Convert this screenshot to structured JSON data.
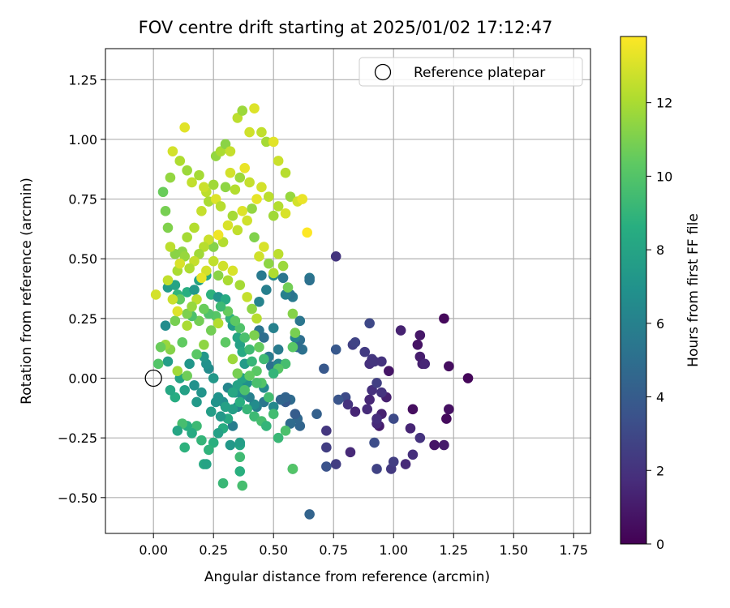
{
  "chart_data": {
    "type": "scatter",
    "title": "FOV centre drift starting at 2025/01/02 17:12:47",
    "xlabel": "Angular distance from reference (arcmin)",
    "ylabel": "Rotation from reference (arcmin)",
    "xlim": [
      -0.2,
      1.82
    ],
    "ylim": [
      -0.65,
      1.38
    ],
    "xticks": [
      0.0,
      0.25,
      0.5,
      0.75,
      1.0,
      1.25,
      1.5,
      1.75
    ],
    "xtick_labels": [
      "0.00",
      "0.25",
      "0.50",
      "0.75",
      "1.00",
      "1.25",
      "1.50",
      "1.75"
    ],
    "yticks": [
      -0.5,
      -0.25,
      0.0,
      0.25,
      0.5,
      0.75,
      1.0,
      1.25
    ],
    "ytick_labels": [
      "−0.50",
      "−0.25",
      "0.00",
      "0.25",
      "0.50",
      "0.75",
      "1.00",
      "1.25"
    ],
    "grid": true,
    "legend": {
      "position": "top-right",
      "entries": [
        "Reference platepar"
      ]
    },
    "reference_point": {
      "x": 0.0,
      "y": 0.0,
      "label": "Reference platepar"
    },
    "colorbar": {
      "label": "Hours from first FF file",
      "colormap": "viridis",
      "range": [
        0,
        13.8
      ],
      "ticks": [
        0,
        2,
        4,
        6,
        8,
        10,
        12
      ],
      "tick_labels": [
        "0",
        "2",
        "4",
        "6",
        "8",
        "10",
        "12"
      ]
    },
    "point_columns": [
      "x",
      "y",
      "hours"
    ],
    "points": [
      [
        1.31,
        0.0,
        0.2
      ],
      [
        1.21,
        0.25,
        0.3
      ],
      [
        1.23,
        0.05,
        0.5
      ],
      [
        1.22,
        -0.17,
        0.4
      ],
      [
        1.23,
        -0.13,
        0.6
      ],
      [
        1.17,
        -0.28,
        0.8
      ],
      [
        1.21,
        -0.28,
        1.0
      ],
      [
        1.08,
        -0.13,
        0.5
      ],
      [
        1.1,
        0.14,
        0.7
      ],
      [
        1.11,
        0.18,
        0.9
      ],
      [
        1.11,
        0.09,
        1.1
      ],
      [
        1.12,
        0.06,
        1.2
      ],
      [
        1.13,
        0.06,
        1.5
      ],
      [
        1.03,
        0.2,
        1.3
      ],
      [
        1.05,
        -0.36,
        1.6
      ],
      [
        1.07,
        -0.21,
        1.4
      ],
      [
        1.08,
        -0.32,
        1.8
      ],
      [
        1.11,
        -0.25,
        2.0
      ],
      [
        0.98,
        0.03,
        0.8
      ],
      [
        0.94,
        -0.2,
        1.0
      ],
      [
        0.93,
        -0.19,
        1.6
      ],
      [
        0.97,
        -0.08,
        1.2
      ],
      [
        0.99,
        -0.38,
        2.3
      ],
      [
        1.0,
        -0.35,
        2.5
      ],
      [
        0.83,
        0.14,
        2.6
      ],
      [
        0.84,
        0.15,
        2.8
      ],
      [
        0.88,
        0.11,
        2.4
      ],
      [
        0.91,
        0.08,
        2.2
      ],
      [
        0.9,
        0.06,
        1.9
      ],
      [
        0.92,
        0.07,
        2.1
      ],
      [
        0.95,
        0.07,
        2.0
      ],
      [
        0.9,
        0.23,
        3.0
      ],
      [
        0.92,
        -0.27,
        3.2
      ],
      [
        0.93,
        -0.38,
        2.7
      ],
      [
        0.89,
        -0.13,
        1.7
      ],
      [
        0.9,
        -0.09,
        1.5
      ],
      [
        0.91,
        -0.05,
        1.9
      ],
      [
        0.93,
        -0.02,
        2.6
      ],
      [
        0.95,
        -0.06,
        2.0
      ],
      [
        0.95,
        -0.15,
        1.3
      ],
      [
        0.93,
        -0.17,
        1.8
      ],
      [
        1.0,
        -0.17,
        3.1
      ],
      [
        0.82,
        -0.31,
        1.6
      ],
      [
        0.84,
        -0.14,
        1.4
      ],
      [
        0.8,
        -0.08,
        3.1
      ],
      [
        0.81,
        -0.11,
        2.0
      ],
      [
        0.76,
        -0.36,
        2.5
      ],
      [
        0.72,
        -0.37,
        3.5
      ],
      [
        0.72,
        -0.29,
        2.5
      ],
      [
        0.72,
        -0.22,
        2.2
      ],
      [
        0.71,
        0.04,
        3.8
      ],
      [
        0.76,
        0.12,
        3.8
      ],
      [
        0.77,
        -0.09,
        3.6
      ],
      [
        0.76,
        0.51,
        2.1
      ],
      [
        0.68,
        -0.15,
        4.2
      ],
      [
        0.65,
        -0.57,
        4.4
      ],
      [
        0.61,
        -0.2,
        4.5
      ],
      [
        0.6,
        -0.17,
        4.6
      ],
      [
        0.59,
        -0.15,
        4.0
      ],
      [
        0.57,
        -0.19,
        4.8
      ],
      [
        0.58,
        -0.38,
        4.3
      ],
      [
        0.57,
        -0.09,
        4.8
      ],
      [
        0.55,
        -0.1,
        3.9
      ],
      [
        0.65,
        0.42,
        5.5
      ],
      [
        0.65,
        0.41,
        5.1
      ],
      [
        0.61,
        0.24,
        5.4
      ],
      [
        0.61,
        0.16,
        5.0
      ],
      [
        0.62,
        0.12,
        5.1
      ],
      [
        0.59,
        0.17,
        6.2
      ],
      [
        0.6,
        0.13,
        4.9
      ],
      [
        0.58,
        0.34,
        5.6
      ],
      [
        0.57,
        0.35,
        5.3
      ],
      [
        0.55,
        0.35,
        6.0
      ],
      [
        0.54,
        0.42,
        5.4
      ],
      [
        0.5,
        0.43,
        6.5
      ],
      [
        0.47,
        0.37,
        5.9
      ],
      [
        0.45,
        0.43,
        5.6
      ],
      [
        0.44,
        0.32,
        6.1
      ],
      [
        0.44,
        0.2,
        5.3
      ],
      [
        0.46,
        0.17,
        5.0
      ],
      [
        0.48,
        0.09,
        5.6
      ],
      [
        0.5,
        0.21,
        6.0
      ],
      [
        0.49,
        0.05,
        5.1
      ],
      [
        0.52,
        0.06,
        6.1
      ],
      [
        0.52,
        0.12,
        5.7
      ],
      [
        0.53,
        -0.09,
        4.6
      ],
      [
        0.55,
        -0.08,
        4.4
      ],
      [
        0.5,
        -0.12,
        6.4
      ],
      [
        0.46,
        -0.04,
        6.4
      ],
      [
        0.46,
        -0.1,
        5.4
      ],
      [
        0.43,
        -0.12,
        5.9
      ],
      [
        0.42,
        -0.11,
        6.6
      ],
      [
        0.4,
        -0.08,
        6.0
      ],
      [
        0.39,
        -0.02,
        6.9
      ],
      [
        0.37,
        -0.07,
        6.5
      ],
      [
        0.35,
        -0.12,
        6.2
      ],
      [
        0.34,
        -0.06,
        7.0
      ],
      [
        0.33,
        -0.2,
        5.8
      ],
      [
        0.31,
        -0.04,
        6.3
      ],
      [
        0.29,
        -0.1,
        6.8
      ],
      [
        0.27,
        -0.08,
        7.0
      ],
      [
        0.25,
        0.0,
        7.3
      ],
      [
        0.23,
        0.04,
        6.6
      ],
      [
        0.22,
        0.06,
        6.9
      ],
      [
        0.21,
        0.09,
        7.2
      ],
      [
        0.2,
        -0.06,
        7.1
      ],
      [
        0.18,
        -0.1,
        7.4
      ],
      [
        0.17,
        -0.03,
        6.9
      ],
      [
        0.15,
        0.06,
        7.2
      ],
      [
        0.13,
        -0.05,
        7.8
      ],
      [
        0.11,
        0.0,
        8.0
      ],
      [
        0.09,
        -0.08,
        8.5
      ],
      [
        0.07,
        -0.05,
        8.2
      ],
      [
        0.06,
        0.07,
        7.6
      ],
      [
        0.05,
        0.22,
        6.7
      ],
      [
        0.06,
        0.38,
        7.5
      ],
      [
        0.09,
        0.39,
        8.0
      ],
      [
        0.1,
        0.35,
        9.0
      ],
      [
        0.14,
        0.36,
        8.6
      ],
      [
        0.17,
        0.37,
        7.4
      ],
      [
        0.19,
        0.41,
        7.9
      ],
      [
        0.22,
        0.43,
        8.2
      ],
      [
        0.24,
        0.35,
        8.8
      ],
      [
        0.27,
        0.34,
        7.1
      ],
      [
        0.3,
        0.33,
        8.4
      ],
      [
        0.32,
        0.25,
        8.9
      ],
      [
        0.33,
        0.22,
        7.6
      ],
      [
        0.35,
        0.17,
        8.1
      ],
      [
        0.36,
        0.14,
        7.8
      ],
      [
        0.37,
        0.11,
        8.3
      ],
      [
        0.38,
        0.06,
        7.5
      ],
      [
        0.37,
        0.0,
        8.0
      ],
      [
        0.35,
        -0.03,
        7.9
      ],
      [
        0.33,
        -0.13,
        7.7
      ],
      [
        0.31,
        -0.17,
        8.3
      ],
      [
        0.29,
        -0.21,
        8.5
      ],
      [
        0.27,
        -0.23,
        7.8
      ],
      [
        0.25,
        -0.27,
        8.7
      ],
      [
        0.23,
        -0.3,
        8.9
      ],
      [
        0.21,
        -0.36,
        8.3
      ],
      [
        0.2,
        -0.26,
        9.0
      ],
      [
        0.18,
        -0.2,
        9.3
      ],
      [
        0.16,
        -0.23,
        8.4
      ],
      [
        0.14,
        -0.2,
        8.6
      ],
      [
        0.12,
        -0.19,
        9.6
      ],
      [
        0.13,
        -0.29,
        8.8
      ],
      [
        0.1,
        -0.22,
        8.1
      ],
      [
        0.29,
        -0.44,
        9.2
      ],
      [
        0.37,
        -0.45,
        9.6
      ],
      [
        0.36,
        -0.39,
        8.7
      ],
      [
        0.36,
        -0.33,
        9.4
      ],
      [
        0.36,
        -0.28,
        8.2
      ],
      [
        0.36,
        -0.27,
        7.6
      ],
      [
        0.32,
        -0.28,
        7.3
      ],
      [
        0.22,
        -0.36,
        8.0
      ],
      [
        0.24,
        -0.14,
        7.6
      ],
      [
        0.26,
        -0.1,
        7.0
      ],
      [
        0.28,
        -0.16,
        7.3
      ],
      [
        0.3,
        -0.12,
        7.8
      ],
      [
        0.33,
        -0.06,
        8.2
      ],
      [
        0.36,
        -0.1,
        8.6
      ],
      [
        0.39,
        -0.13,
        9.1
      ],
      [
        0.42,
        -0.16,
        9.3
      ],
      [
        0.45,
        -0.18,
        9.6
      ],
      [
        0.47,
        -0.2,
        9.0
      ],
      [
        0.5,
        -0.15,
        9.5
      ],
      [
        0.52,
        -0.25,
        9.2
      ],
      [
        0.55,
        -0.22,
        9.8
      ],
      [
        0.58,
        -0.38,
        10.0
      ],
      [
        0.48,
        -0.08,
        9.5
      ],
      [
        0.45,
        -0.02,
        10.0
      ],
      [
        0.43,
        0.03,
        10.2
      ],
      [
        0.41,
        0.07,
        9.1
      ],
      [
        0.4,
        0.12,
        9.4
      ],
      [
        0.38,
        0.17,
        9.7
      ],
      [
        0.36,
        0.21,
        9.9
      ],
      [
        0.34,
        0.24,
        10.3
      ],
      [
        0.31,
        0.28,
        10.5
      ],
      [
        0.28,
        0.3,
        9.3
      ],
      [
        0.26,
        0.26,
        10.1
      ],
      [
        0.23,
        0.27,
        9.9
      ],
      [
        0.21,
        0.29,
        10.6
      ],
      [
        0.19,
        0.24,
        10.8
      ],
      [
        0.16,
        0.26,
        9.8
      ],
      [
        0.14,
        0.27,
        11.0
      ],
      [
        0.11,
        0.33,
        10.4
      ],
      [
        0.09,
        0.24,
        10.9
      ],
      [
        0.07,
        0.12,
        11.2
      ],
      [
        0.05,
        0.14,
        11.6
      ],
      [
        0.03,
        0.13,
        10.6
      ],
      [
        0.02,
        0.06,
        10.0
      ],
      [
        0.01,
        0.35,
        12.9
      ],
      [
        0.06,
        0.41,
        12.5
      ],
      [
        0.1,
        0.45,
        12.0
      ],
      [
        0.12,
        0.53,
        11.4
      ],
      [
        0.14,
        0.59,
        11.9
      ],
      [
        0.17,
        0.63,
        12.2
      ],
      [
        0.2,
        0.7,
        12.6
      ],
      [
        0.22,
        0.78,
        12.4
      ],
      [
        0.25,
        0.81,
        11.8
      ],
      [
        0.26,
        0.93,
        11.5
      ],
      [
        0.28,
        0.95,
        12.0
      ],
      [
        0.3,
        0.98,
        11.3
      ],
      [
        0.32,
        0.95,
        12.6
      ],
      [
        0.35,
        1.09,
        12.4
      ],
      [
        0.37,
        1.12,
        11.7
      ],
      [
        0.4,
        1.03,
        12.8
      ],
      [
        0.42,
        1.13,
        13.1
      ],
      [
        0.45,
        1.03,
        12.5
      ],
      [
        0.47,
        0.99,
        11.9
      ],
      [
        0.5,
        0.99,
        13.2
      ],
      [
        0.52,
        0.91,
        12.7
      ],
      [
        0.55,
        0.86,
        12.3
      ],
      [
        0.57,
        0.76,
        11.6
      ],
      [
        0.6,
        0.74,
        12.9
      ],
      [
        0.62,
        0.75,
        13.4
      ],
      [
        0.64,
        0.61,
        13.8
      ],
      [
        0.55,
        0.69,
        13.0
      ],
      [
        0.52,
        0.72,
        12.2
      ],
      [
        0.5,
        0.68,
        11.8
      ],
      [
        0.48,
        0.76,
        12.4
      ],
      [
        0.45,
        0.8,
        12.9
      ],
      [
        0.43,
        0.75,
        13.3
      ],
      [
        0.41,
        0.71,
        11.5
      ],
      [
        0.39,
        0.66,
        12.8
      ],
      [
        0.37,
        0.7,
        13.1
      ],
      [
        0.35,
        0.62,
        12.5
      ],
      [
        0.33,
        0.68,
        11.9
      ],
      [
        0.31,
        0.64,
        13.0
      ],
      [
        0.29,
        0.57,
        12.2
      ],
      [
        0.27,
        0.6,
        13.5
      ],
      [
        0.25,
        0.55,
        11.2
      ],
      [
        0.23,
        0.58,
        12.7
      ],
      [
        0.21,
        0.55,
        12.3
      ],
      [
        0.19,
        0.52,
        11.8
      ],
      [
        0.17,
        0.49,
        12.6
      ],
      [
        0.15,
        0.46,
        12.1
      ],
      [
        0.13,
        0.51,
        11.6
      ],
      [
        0.11,
        0.48,
        13.0
      ],
      [
        0.09,
        0.52,
        11.3
      ],
      [
        0.07,
        0.55,
        12.4
      ],
      [
        0.06,
        0.63,
        11.1
      ],
      [
        0.05,
        0.7,
        10.9
      ],
      [
        0.04,
        0.78,
        10.6
      ],
      [
        0.07,
        0.84,
        11.5
      ],
      [
        0.08,
        0.95,
        12.9
      ],
      [
        0.11,
        0.91,
        12.1
      ],
      [
        0.14,
        0.87,
        11.7
      ],
      [
        0.16,
        0.82,
        12.5
      ],
      [
        0.13,
        1.05,
        13.2
      ],
      [
        0.19,
        0.85,
        11.9
      ],
      [
        0.21,
        0.8,
        12.7
      ],
      [
        0.23,
        0.74,
        12.0
      ],
      [
        0.26,
        0.75,
        13.1
      ],
      [
        0.28,
        0.72,
        12.3
      ],
      [
        0.3,
        0.8,
        11.4
      ],
      [
        0.32,
        0.86,
        12.9
      ],
      [
        0.34,
        0.79,
        12.2
      ],
      [
        0.36,
        0.84,
        11.7
      ],
      [
        0.38,
        0.88,
        13.4
      ],
      [
        0.4,
        0.82,
        12.6
      ],
      [
        0.42,
        0.59,
        11.1
      ],
      [
        0.44,
        0.51,
        12.8
      ],
      [
        0.46,
        0.55,
        13.0
      ],
      [
        0.48,
        0.48,
        11.4
      ],
      [
        0.5,
        0.44,
        12.1
      ],
      [
        0.52,
        0.52,
        12.4
      ],
      [
        0.54,
        0.47,
        11.7
      ],
      [
        0.56,
        0.38,
        10.8
      ],
      [
        0.58,
        0.27,
        11.2
      ],
      [
        0.59,
        0.19,
        10.9
      ],
      [
        0.58,
        0.13,
        10.2
      ],
      [
        0.55,
        0.06,
        9.6
      ],
      [
        0.52,
        0.04,
        10.1
      ],
      [
        0.5,
        0.02,
        9.0
      ],
      [
        0.46,
        0.08,
        9.4
      ],
      [
        0.44,
        0.13,
        10.5
      ],
      [
        0.42,
        0.18,
        11.0
      ],
      [
        0.43,
        0.25,
        12.3
      ],
      [
        0.41,
        0.29,
        11.4
      ],
      [
        0.39,
        0.34,
        12.6
      ],
      [
        0.36,
        0.39,
        11.9
      ],
      [
        0.33,
        0.45,
        13.0
      ],
      [
        0.31,
        0.41,
        12.0
      ],
      [
        0.29,
        0.47,
        12.8
      ],
      [
        0.27,
        0.43,
        11.3
      ],
      [
        0.25,
        0.49,
        12.5
      ],
      [
        0.22,
        0.45,
        12.9
      ],
      [
        0.2,
        0.42,
        13.3
      ],
      [
        0.18,
        0.33,
        12.4
      ],
      [
        0.16,
        0.3,
        11.6
      ],
      [
        0.14,
        0.22,
        12.0
      ],
      [
        0.12,
        0.15,
        10.4
      ],
      [
        0.1,
        0.28,
        13.1
      ],
      [
        0.08,
        0.33,
        12.7
      ],
      [
        0.1,
        0.03,
        11.8
      ],
      [
        0.14,
        0.01,
        10.7
      ],
      [
        0.18,
        0.1,
        10.2
      ],
      [
        0.21,
        0.14,
        11.4
      ],
      [
        0.24,
        0.2,
        10.8
      ],
      [
        0.27,
        0.23,
        12.2
      ],
      [
        0.3,
        0.15,
        10.3
      ],
      [
        0.33,
        0.08,
        11.7
      ],
      [
        0.35,
        0.02,
        10.9
      ],
      [
        0.38,
        -0.05,
        9.8
      ],
      [
        0.4,
        0.01,
        10.4
      ],
      [
        0.43,
        -0.02,
        9.7
      ]
    ]
  }
}
